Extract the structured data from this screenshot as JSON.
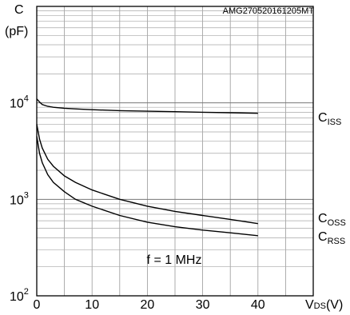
{
  "chart_data": {
    "type": "line",
    "code": "AMG270520161205MT",
    "ylabel_sym": "C",
    "ylabel_unit": "(pF)",
    "xlabel_sym": "V",
    "xlabel_sub": "DS",
    "xlabel_unit": "(V)",
    "annotation": "f = 1 MHz",
    "x_ticks": [
      "0",
      "10",
      "20",
      "30",
      "40"
    ],
    "y_ticks": [
      {
        "base": "10",
        "exp": "2"
      },
      {
        "base": "10",
        "exp": "3"
      },
      {
        "base": "10",
        "exp": "4"
      }
    ],
    "xlim": [
      0,
      50
    ],
    "ylim": [
      100,
      100000
    ],
    "y_scale": "log",
    "grid": true,
    "series": [
      {
        "label_main": "C",
        "label_sub": "ISS",
        "x": [
          0,
          0.5,
          1,
          2,
          3,
          5,
          8,
          10,
          15,
          20,
          25,
          30,
          35,
          40
        ],
        "y": [
          11000,
          10200,
          9600,
          9200,
          9000,
          8800,
          8600,
          8500,
          8300,
          8200,
          8100,
          8000,
          7900,
          7800
        ]
      },
      {
        "label_main": "C",
        "label_sub": "OSS",
        "x": [
          0,
          0.5,
          1,
          2,
          3,
          5,
          7,
          10,
          15,
          20,
          25,
          30,
          35,
          40
        ],
        "y": [
          6000,
          4200,
          3400,
          2600,
          2200,
          1750,
          1500,
          1250,
          1000,
          850,
          750,
          680,
          620,
          560
        ]
      },
      {
        "label_main": "C",
        "label_sub": "RSS",
        "x": [
          0,
          0.5,
          1,
          2,
          3,
          5,
          7,
          10,
          15,
          20,
          25,
          30,
          35,
          40
        ],
        "y": [
          4500,
          3000,
          2400,
          1800,
          1500,
          1200,
          1000,
          850,
          680,
          580,
          520,
          480,
          450,
          420
        ]
      }
    ]
  }
}
